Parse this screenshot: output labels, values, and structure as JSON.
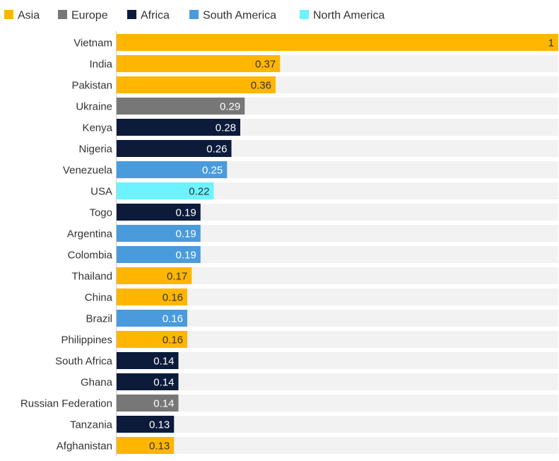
{
  "chart_data": {
    "type": "bar",
    "orientation": "horizontal",
    "xlim": [
      0,
      1
    ],
    "grid": false,
    "legend_position": "top-left",
    "legend": [
      {
        "name": "Asia",
        "color": "#FFB600"
      },
      {
        "name": "Europe",
        "color": "#777777"
      },
      {
        "name": "Africa",
        "color": "#0C1B3A"
      },
      {
        "name": "South America",
        "color": "#4A9BDC"
      },
      {
        "name": "North America",
        "color": "#6DF3FF"
      }
    ],
    "bars": [
      {
        "category": "Vietnam",
        "value": 1,
        "label": "1",
        "region": "Asia"
      },
      {
        "category": "India",
        "value": 0.37,
        "label": "0.37",
        "region": "Asia"
      },
      {
        "category": "Pakistan",
        "value": 0.36,
        "label": "0.36",
        "region": "Asia"
      },
      {
        "category": "Ukraine",
        "value": 0.29,
        "label": "0.29",
        "region": "Europe"
      },
      {
        "category": "Kenya",
        "value": 0.28,
        "label": "0.28",
        "region": "Africa"
      },
      {
        "category": "Nigeria",
        "value": 0.26,
        "label": "0.26",
        "region": "Africa"
      },
      {
        "category": "Venezuela",
        "value": 0.25,
        "label": "0.25",
        "region": "South America"
      },
      {
        "category": "USA",
        "value": 0.22,
        "label": "0.22",
        "region": "North America"
      },
      {
        "category": "Togo",
        "value": 0.19,
        "label": "0.19",
        "region": "Africa"
      },
      {
        "category": "Argentina",
        "value": 0.19,
        "label": "0.19",
        "region": "South America"
      },
      {
        "category": "Colombia",
        "value": 0.19,
        "label": "0.19",
        "region": "South America"
      },
      {
        "category": "Thailand",
        "value": 0.17,
        "label": "0.17",
        "region": "Asia"
      },
      {
        "category": "China",
        "value": 0.16,
        "label": "0.16",
        "region": "Asia"
      },
      {
        "category": "Brazil",
        "value": 0.16,
        "label": "0.16",
        "region": "South America"
      },
      {
        "category": "Philippines",
        "value": 0.16,
        "label": "0.16",
        "region": "Asia"
      },
      {
        "category": "South Africa",
        "value": 0.14,
        "label": "0.14",
        "region": "Africa"
      },
      {
        "category": "Ghana",
        "value": 0.14,
        "label": "0.14",
        "region": "Africa"
      },
      {
        "category": "Russian Federation",
        "value": 0.14,
        "label": "0.14",
        "region": "Europe"
      },
      {
        "category": "Tanzania",
        "value": 0.13,
        "label": "0.13",
        "region": "Africa"
      },
      {
        "category": "Afghanistan",
        "value": 0.13,
        "label": "0.13",
        "region": "Asia"
      }
    ]
  }
}
